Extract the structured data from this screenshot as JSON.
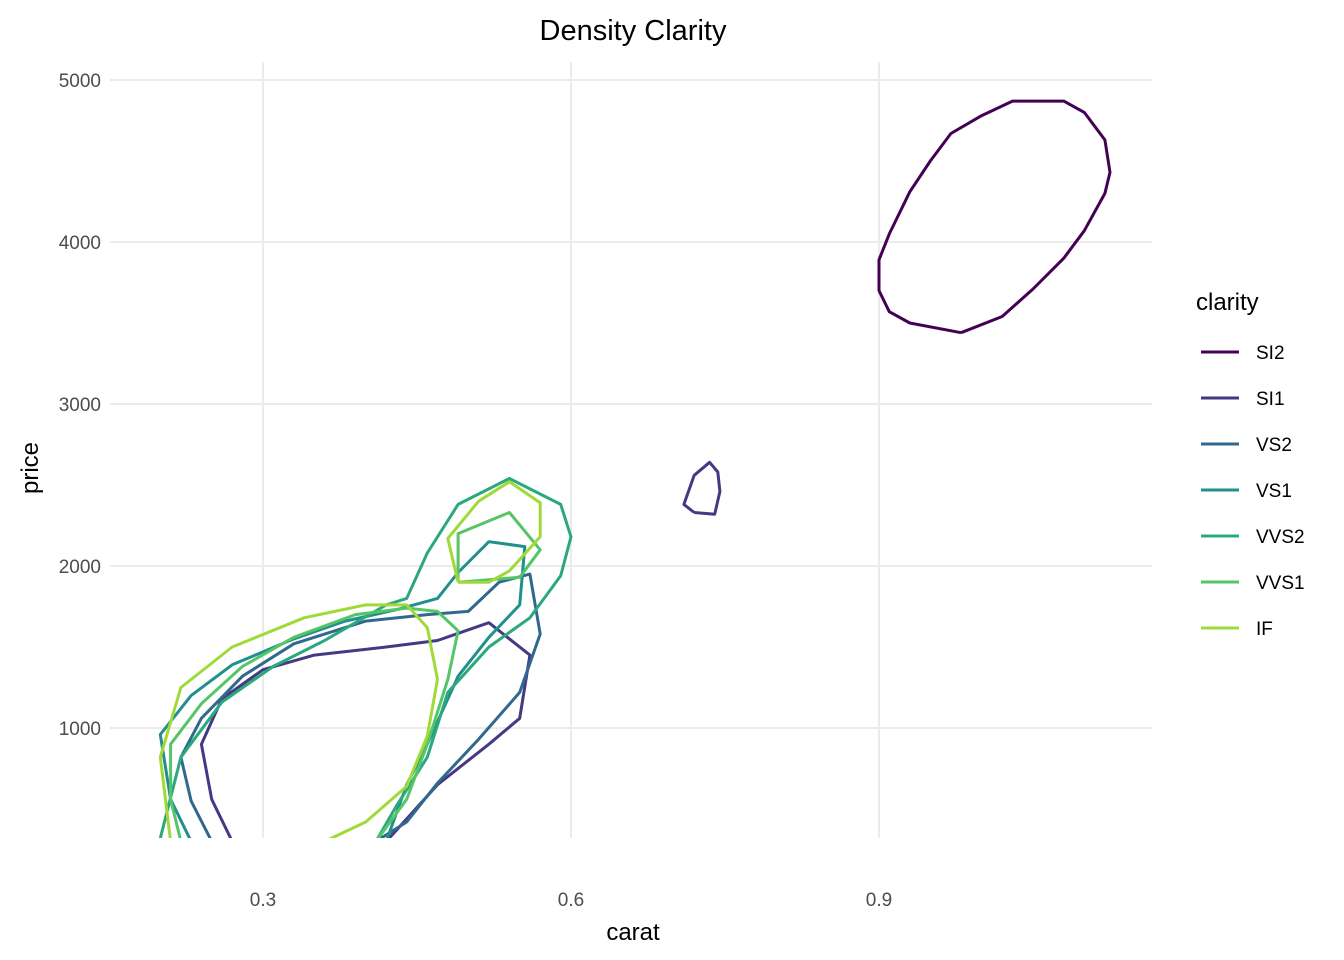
{
  "chart_data": {
    "type": "line",
    "title": "Density Clarity",
    "xlabel": "carat",
    "ylabel": "price",
    "xlim": [
      0.2,
      1.15
    ],
    "ylim": [
      300,
      5000
    ],
    "xticks": [
      0.3,
      0.6,
      0.9
    ],
    "xtick_labels": [
      "0.3",
      "0.6",
      "0.9"
    ],
    "yticks": [
      1000,
      2000,
      3000,
      4000,
      5000
    ],
    "ytick_labels": [
      "1000",
      "2000",
      "3000",
      "4000",
      "5000"
    ],
    "grid": true,
    "legend": {
      "title": "clarity",
      "placement": "right"
    },
    "series": [
      {
        "name": "SI2",
        "color": "#440154",
        "contours": [
          [
            [
              0.98,
              3440
            ],
            [
              0.93,
              3500
            ],
            [
              0.91,
              3570
            ],
            [
              0.9,
              3700
            ],
            [
              0.9,
              3890
            ],
            [
              0.91,
              4050
            ],
            [
              0.93,
              4310
            ],
            [
              0.95,
              4500
            ],
            [
              0.97,
              4670
            ],
            [
              1.0,
              4780
            ],
            [
              1.03,
              4870
            ],
            [
              1.08,
              4870
            ],
            [
              1.1,
              4800
            ],
            [
              1.12,
              4630
            ],
            [
              1.125,
              4430
            ],
            [
              1.12,
              4300
            ],
            [
              1.1,
              4070
            ],
            [
              1.08,
              3900
            ],
            [
              1.05,
              3710
            ],
            [
              1.02,
              3540
            ],
            [
              0.98,
              3440
            ]
          ]
        ]
      },
      {
        "name": "SI1",
        "color": "#443A83",
        "contours": [
          [
            [
              0.72,
              2330
            ],
            [
              0.74,
              2320
            ],
            [
              0.745,
              2460
            ],
            [
              0.743,
              2580
            ],
            [
              0.735,
              2640
            ],
            [
              0.72,
              2560
            ],
            [
              0.71,
              2380
            ],
            [
              0.72,
              2330
            ]
          ],
          [
            [
              0.27,
              300
            ],
            [
              0.25,
              560
            ],
            [
              0.24,
              900
            ],
            [
              0.26,
              1180
            ],
            [
              0.3,
              1360
            ],
            [
              0.35,
              1450
            ],
            [
              0.42,
              1500
            ],
            [
              0.47,
              1540
            ],
            [
              0.52,
              1650
            ],
            [
              0.56,
              1450
            ],
            [
              0.55,
              1060
            ],
            [
              0.52,
              900
            ],
            [
              0.47,
              650
            ],
            [
              0.43,
              370
            ],
            [
              0.42,
              300
            ]
          ]
        ]
      },
      {
        "name": "VS2",
        "color": "#31688E",
        "contours": [
          [
            [
              0.25,
              300
            ],
            [
              0.23,
              550
            ],
            [
              0.22,
              820
            ],
            [
              0.24,
              1060
            ],
            [
              0.28,
              1320
            ],
            [
              0.33,
              1520
            ],
            [
              0.4,
              1660
            ],
            [
              0.46,
              1700
            ],
            [
              0.5,
              1720
            ],
            [
              0.53,
              1900
            ],
            [
              0.56,
              1950
            ],
            [
              0.57,
              1580
            ],
            [
              0.55,
              1220
            ],
            [
              0.51,
              930
            ],
            [
              0.47,
              660
            ],
            [
              0.44,
              420
            ],
            [
              0.41,
              300
            ]
          ]
        ]
      },
      {
        "name": "VS1",
        "color": "#21908C",
        "contours": [
          [
            [
              0.23,
              300
            ],
            [
              0.21,
              560
            ],
            [
              0.2,
              960
            ],
            [
              0.23,
              1200
            ],
            [
              0.27,
              1390
            ],
            [
              0.33,
              1550
            ],
            [
              0.38,
              1660
            ],
            [
              0.43,
              1730
            ],
            [
              0.47,
              1800
            ],
            [
              0.49,
              1960
            ],
            [
              0.52,
              2150
            ],
            [
              0.555,
              2120
            ],
            [
              0.55,
              1760
            ],
            [
              0.52,
              1560
            ],
            [
              0.49,
              1320
            ],
            [
              0.46,
              900
            ],
            [
              0.44,
              650
            ],
            [
              0.42,
              300
            ]
          ]
        ]
      },
      {
        "name": "VVS2",
        "color": "#2BA87E",
        "contours": [
          [
            [
              0.2,
              320
            ],
            [
              0.22,
              820
            ],
            [
              0.26,
              1160
            ],
            [
              0.31,
              1380
            ],
            [
              0.36,
              1540
            ],
            [
              0.42,
              1760
            ],
            [
              0.44,
              1800
            ],
            [
              0.46,
              2080
            ],
            [
              0.49,
              2380
            ],
            [
              0.54,
              2540
            ],
            [
              0.59,
              2380
            ],
            [
              0.6,
              2180
            ],
            [
              0.59,
              1940
            ],
            [
              0.56,
              1680
            ],
            [
              0.52,
              1500
            ],
            [
              0.48,
              1220
            ],
            [
              0.46,
              820
            ],
            [
              0.43,
              520
            ],
            [
              0.41,
              300
            ]
          ]
        ]
      },
      {
        "name": "VVS1",
        "color": "#55C568",
        "contours": [
          [
            [
              0.22,
              300
            ],
            [
              0.21,
              560
            ],
            [
              0.21,
              900
            ],
            [
              0.24,
              1150
            ],
            [
              0.28,
              1380
            ],
            [
              0.33,
              1560
            ],
            [
              0.39,
              1700
            ],
            [
              0.44,
              1740
            ],
            [
              0.47,
              1720
            ],
            [
              0.49,
              1600
            ],
            [
              0.48,
              1300
            ],
            [
              0.46,
              900
            ],
            [
              0.44,
              560
            ],
            [
              0.41,
              300
            ]
          ],
          [
            [
              0.49,
              1900
            ],
            [
              0.49,
              2200
            ],
            [
              0.54,
              2330
            ],
            [
              0.57,
              2100
            ],
            [
              0.55,
              1930
            ],
            [
              0.49,
              1900
            ]
          ]
        ]
      },
      {
        "name": "IF",
        "color": "#A0DA39",
        "contours": [
          [
            [
              0.21,
              300
            ],
            [
              0.2,
              820
            ],
            [
              0.22,
              1250
            ],
            [
              0.27,
              1500
            ],
            [
              0.34,
              1680
            ],
            [
              0.4,
              1760
            ],
            [
              0.44,
              1760
            ],
            [
              0.46,
              1620
            ],
            [
              0.47,
              1300
            ],
            [
              0.46,
              950
            ],
            [
              0.44,
              640
            ],
            [
              0.4,
              420
            ],
            [
              0.36,
              300
            ]
          ],
          [
            [
              0.49,
              1900
            ],
            [
              0.48,
              2170
            ],
            [
              0.51,
              2400
            ],
            [
              0.54,
              2520
            ],
            [
              0.57,
              2390
            ],
            [
              0.57,
              2180
            ],
            [
              0.54,
              1970
            ],
            [
              0.52,
              1900
            ],
            [
              0.49,
              1900
            ]
          ]
        ]
      }
    ]
  }
}
